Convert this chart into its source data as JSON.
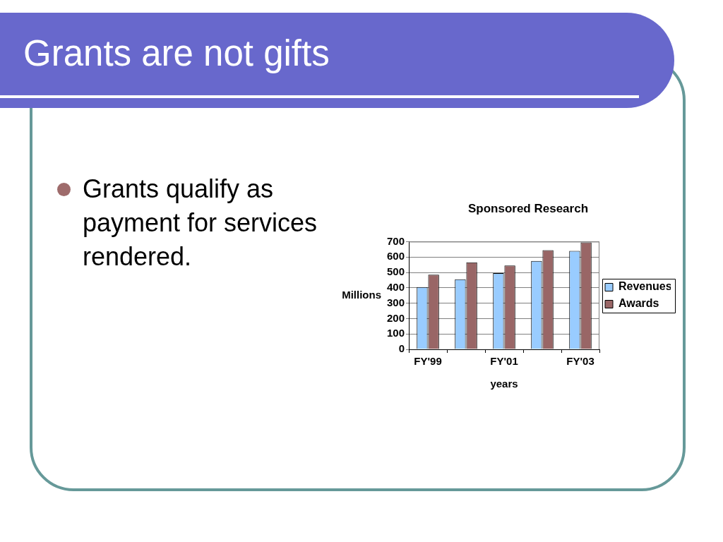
{
  "chart_data": {
    "type": "bar",
    "title": "Sponsored Research",
    "xlabel": "years",
    "ylabel": "Millions",
    "categories": [
      "FY'99",
      null,
      "FY'01",
      null,
      "FY'03"
    ],
    "series": [
      {
        "name": "Revenues",
        "color": "#99ccff",
        "values": [
          405,
          455,
          495,
          575,
          640
        ]
      },
      {
        "name": "Awards",
        "color": "#996666",
        "values": [
          485,
          565,
          545,
          645,
          695
        ]
      }
    ],
    "ylim": [
      0,
      700
    ],
    "yticks": [
      0,
      100,
      200,
      300,
      400,
      500,
      600,
      700
    ],
    "grid": "y",
    "legend": "right",
    "annotations": [
      "Grants are not gifts",
      "Grants qualify as payment for services rendered."
    ]
  }
}
